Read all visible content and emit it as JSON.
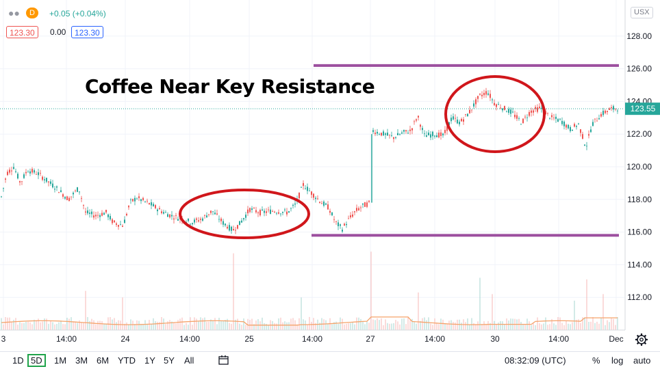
{
  "header": {
    "interval_badge": "D",
    "change_text": "+0.05 (+0.04%)",
    "bid": "123.30",
    "spread": "0.00",
    "ask": "123.30",
    "currency": "USX"
  },
  "colors": {
    "up": "#26a69a",
    "down": "#ef5350",
    "volume_up": "#a5d6cf",
    "volume_down": "#f7b7b5",
    "ma_line": "#f5a36a",
    "level_lines": "#9c4f9f",
    "ellipse": "#d0161b",
    "last_price": "#26a69a"
  },
  "annotations": {
    "title": "Coffee Near Key Resistance"
  },
  "toolbar": {
    "ranges": [
      "1D",
      "5D",
      "1M",
      "3M",
      "6M",
      "YTD",
      "1Y",
      "5Y",
      "All"
    ],
    "selected": "5D",
    "time": "08:32:09 (UTC)",
    "percent": "%",
    "log": "log",
    "auto": "auto"
  },
  "chart_data": {
    "type": "candlestick",
    "x_ticks": [
      "3",
      "14:00",
      "24",
      "14:00",
      "25",
      "14:00",
      "27",
      "14:00",
      "30",
      "14:00",
      "Dec"
    ],
    "y_ticks": [
      112.0,
      114.0,
      116.0,
      118.0,
      120.0,
      122.0,
      124.0,
      126.0,
      128.0
    ],
    "ylim": [
      110.0,
      130.0
    ],
    "last_price": 123.55,
    "resistance": 126.2,
    "support": 115.8,
    "price_path": [
      [
        0,
        117.8
      ],
      [
        10,
        119.6
      ],
      [
        20,
        120.0
      ],
      [
        30,
        119.0
      ],
      [
        40,
        119.8
      ],
      [
        55,
        119.6
      ],
      [
        70,
        119.1
      ],
      [
        85,
        118.6
      ],
      [
        100,
        118.0
      ],
      [
        115,
        118.7
      ],
      [
        125,
        117.2
      ],
      [
        140,
        117.0
      ],
      [
        155,
        117.2
      ],
      [
        165,
        116.6
      ],
      [
        180,
        116.4
      ],
      [
        190,
        117.8
      ],
      [
        200,
        118.1
      ],
      [
        220,
        117.7
      ],
      [
        235,
        117.3
      ],
      [
        250,
        117.0
      ],
      [
        265,
        116.8
      ],
      [
        280,
        116.6
      ],
      [
        295,
        116.8
      ],
      [
        310,
        117.3
      ],
      [
        325,
        116.6
      ],
      [
        340,
        116.1
      ],
      [
        350,
        116.5
      ],
      [
        365,
        117.4
      ],
      [
        380,
        117.2
      ],
      [
        400,
        117.3
      ],
      [
        420,
        117.2
      ],
      [
        432,
        117.7
      ],
      [
        443,
        118.9
      ],
      [
        455,
        118.4
      ],
      [
        470,
        117.8
      ],
      [
        480,
        117.5
      ],
      [
        490,
        116.6
      ],
      [
        500,
        116.2
      ],
      [
        510,
        116.8
      ],
      [
        520,
        117.3
      ],
      [
        530,
        117.6
      ],
      [
        541,
        117.8
      ],
      [
        545,
        122.2
      ],
      [
        560,
        122.0
      ],
      [
        575,
        121.8
      ],
      [
        590,
        122.1
      ],
      [
        600,
        122.2
      ],
      [
        610,
        123.1
      ],
      [
        620,
        121.9
      ],
      [
        635,
        122.0
      ],
      [
        648,
        121.9
      ],
      [
        660,
        123.0
      ],
      [
        672,
        122.7
      ],
      [
        685,
        123.3
      ],
      [
        700,
        124.3
      ],
      [
        712,
        124.6
      ],
      [
        722,
        123.9
      ],
      [
        735,
        123.6
      ],
      [
        748,
        123.3
      ],
      [
        762,
        122.7
      ],
      [
        775,
        123.4
      ],
      [
        790,
        123.6
      ],
      [
        805,
        123.0
      ],
      [
        820,
        122.8
      ],
      [
        833,
        122.3
      ],
      [
        845,
        122.6
      ],
      [
        856,
        121.2
      ],
      [
        865,
        122.6
      ],
      [
        878,
        123.2
      ],
      [
        890,
        123.5
      ],
      [
        902,
        123.6
      ]
    ],
    "volume_spikes": [
      [
        125,
        112.4
      ],
      [
        180,
        112.0
      ],
      [
        340,
        114.7
      ],
      [
        440,
        112.0
      ],
      [
        543,
        114.8
      ],
      [
        610,
        112.3
      ],
      [
        700,
        113.2
      ],
      [
        720,
        112.2
      ],
      [
        840,
        111.8
      ],
      [
        857,
        113.1
      ],
      [
        880,
        112.2
      ]
    ]
  }
}
